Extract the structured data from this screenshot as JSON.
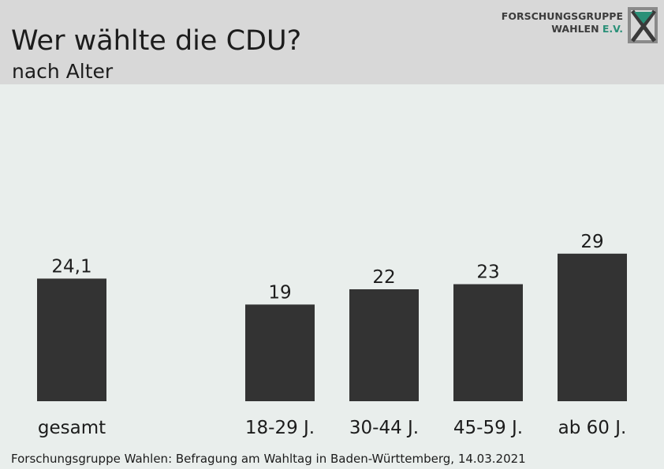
{
  "header": {
    "title": "Wer wählte die CDU?",
    "subtitle": "nach Alter"
  },
  "logo": {
    "line1": "FORSCHUNGSGRUPPE",
    "line2": "WAHLEN",
    "line2_suffix": "E.V.",
    "icon": "x-box-logo-icon"
  },
  "colors": {
    "bar": "#333333",
    "header_bg": "#d8d8d8",
    "plot_bg": "#e9eeec",
    "logo_accent": "#2a9078"
  },
  "chart_data": {
    "type": "bar",
    "title": "Wer wählte die CDU?",
    "subtitle": "nach Alter",
    "categories": [
      "gesamt",
      "18-29 J.",
      "30-44 J.",
      "45-59 J.",
      "ab 60 J."
    ],
    "values": [
      24.1,
      19,
      22,
      23,
      29
    ],
    "value_labels": [
      "24,1",
      "19",
      "22",
      "23",
      "29"
    ],
    "xlabel": "",
    "ylabel": "",
    "ylim": [
      0,
      29
    ],
    "grid": false,
    "legend": "none"
  },
  "source": "Forschungsgruppe Wahlen: Befragung am Wahltag in Baden-Württemberg, 14.03.2021"
}
